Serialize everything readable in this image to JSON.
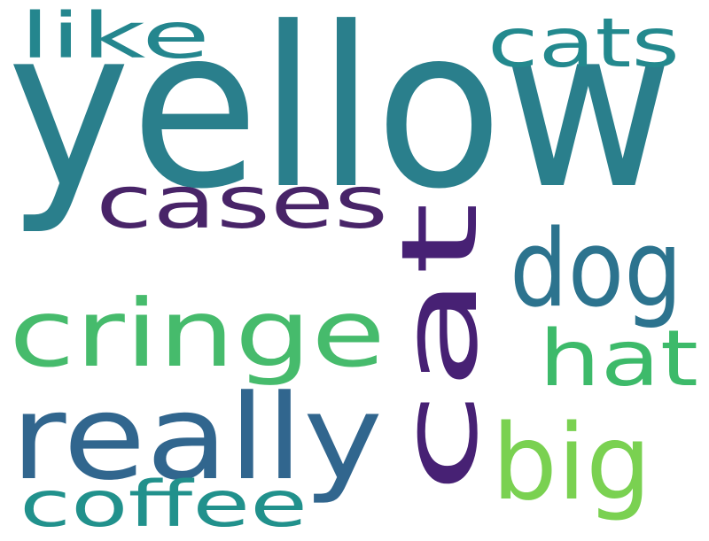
{
  "words": {
    "yellow": {
      "text": "yellow",
      "color": "#2a7f8c"
    },
    "cat": {
      "text": "cat",
      "color": "#472174"
    },
    "cringe": {
      "text": "cringe",
      "color": "#46bb6c"
    },
    "really": {
      "text": "really",
      "color": "#31668e"
    },
    "cases": {
      "text": "cases",
      "color": "#482468"
    },
    "dog": {
      "text": "dog",
      "color": "#2c738e"
    },
    "like": {
      "text": "like",
      "color": "#24868e"
    },
    "cats": {
      "text": "cats",
      "color": "#23898e"
    },
    "hat": {
      "text": "hat",
      "color": "#3dba6a"
    },
    "big": {
      "text": "big",
      "color": "#7ad151"
    },
    "coffee": {
      "text": "coffee",
      "color": "#21918c"
    }
  }
}
